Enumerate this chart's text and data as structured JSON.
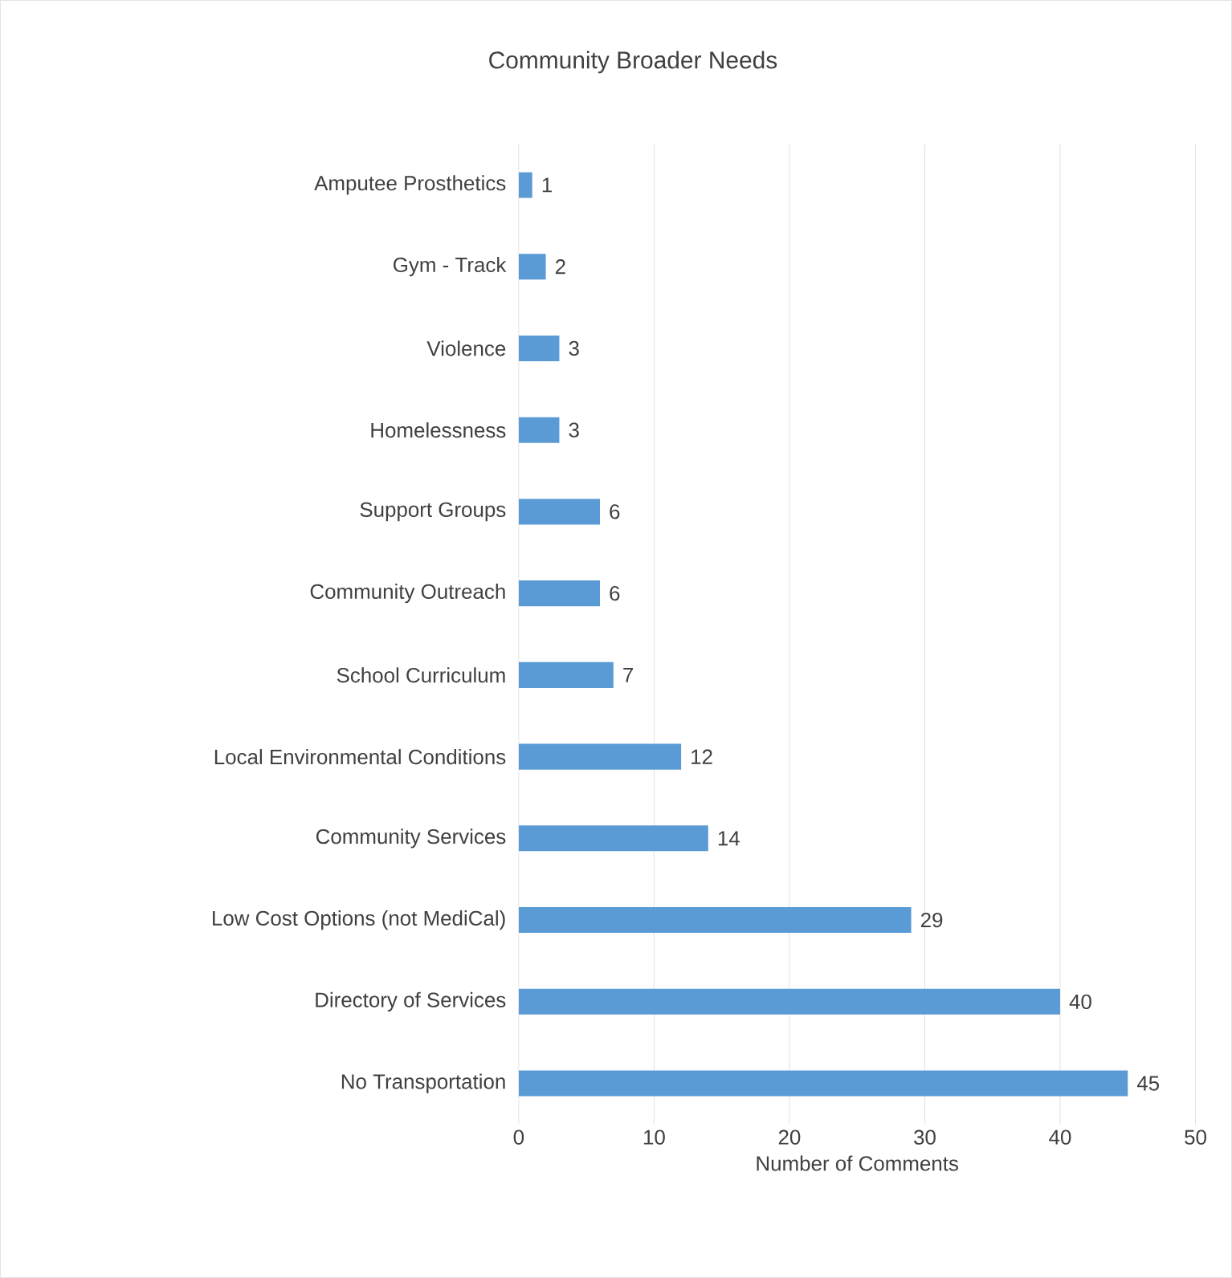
{
  "chart_data": {
    "type": "bar",
    "orientation": "horizontal",
    "title": "Community  Broader Needs",
    "xlabel": "Number of Comments",
    "categories": [
      "Amputee Prosthetics",
      "Gym - Track",
      "Violence",
      "Homelessness",
      "Support Groups",
      "Community Outreach",
      "School Curriculum",
      "Local Environmental Conditions",
      "Community Services",
      "Low Cost Options (not MediCal)",
      "Directory of Services",
      "No Transportation"
    ],
    "values": [
      1,
      2,
      3,
      3,
      6,
      6,
      7,
      12,
      14,
      29,
      40,
      45
    ],
    "color": "#5b9bd5",
    "data_labels": true,
    "grid": "x",
    "xlim": [
      0,
      50
    ],
    "xticks": [
      0,
      10,
      20,
      30,
      40,
      50
    ]
  }
}
